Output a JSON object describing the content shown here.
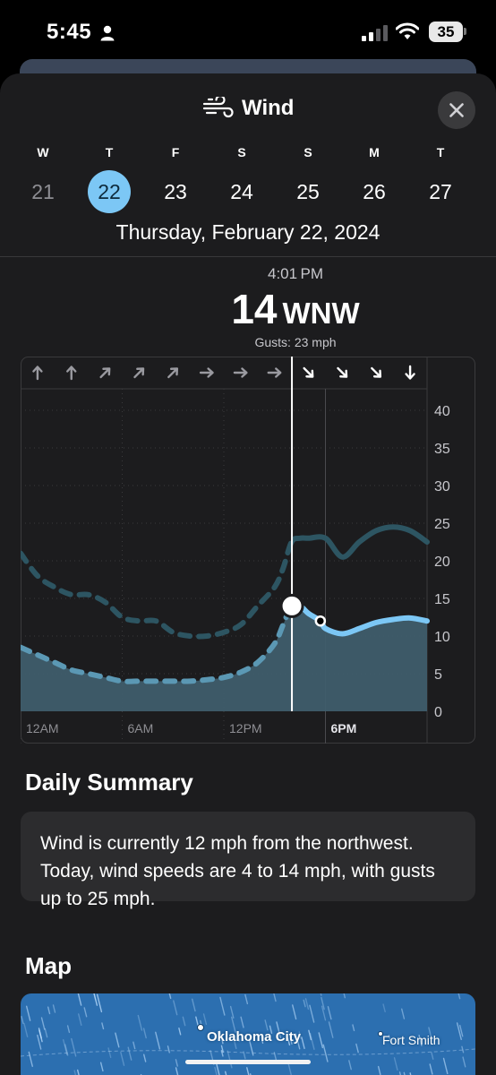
{
  "status_bar": {
    "time": "5:45",
    "battery": "35"
  },
  "sheet": {
    "title": "Wind",
    "icon": "wind-icon",
    "close_icon": "close-icon"
  },
  "week": {
    "days": [
      {
        "letter": "W",
        "number": "21",
        "state": "past"
      },
      {
        "letter": "T",
        "number": "22",
        "state": "selected"
      },
      {
        "letter": "F",
        "number": "23",
        "state": "future"
      },
      {
        "letter": "S",
        "number": "24",
        "state": "future"
      },
      {
        "letter": "S",
        "number": "25",
        "state": "future"
      },
      {
        "letter": "M",
        "number": "26",
        "state": "future"
      },
      {
        "letter": "T",
        "number": "27",
        "state": "future"
      }
    ],
    "selected_date": "Thursday, February 22, 2024"
  },
  "readout": {
    "time": "4:01 PM",
    "speed": "14",
    "direction": "WNW",
    "gusts": "Gusts: 23 mph"
  },
  "chart_data": {
    "type": "line",
    "title": "",
    "xlabel": "",
    "ylabel": "",
    "x_unit": "hour",
    "xlim": [
      0,
      24
    ],
    "ylim": [
      0,
      40
    ],
    "y_ticks": [
      "0",
      "5",
      "10",
      "15",
      "20",
      "25",
      "30",
      "35",
      "40"
    ],
    "x_ticks": [
      {
        "hour": 0,
        "label": "12AM"
      },
      {
        "hour": 6,
        "label": "6AM"
      },
      {
        "hour": 12,
        "label": "12PM"
      },
      {
        "hour": 18,
        "label": "6PM"
      }
    ],
    "current_hour": 16.02,
    "current_value": 14,
    "marker_hour": 17.7,
    "direction_arrows": [
      {
        "hour": 1,
        "deg": 0
      },
      {
        "hour": 3,
        "deg": 0
      },
      {
        "hour": 5,
        "deg": 45
      },
      {
        "hour": 7,
        "deg": 45
      },
      {
        "hour": 9,
        "deg": 45
      },
      {
        "hour": 11,
        "deg": 90
      },
      {
        "hour": 13,
        "deg": 90
      },
      {
        "hour": 15,
        "deg": 90
      },
      {
        "hour": 17,
        "deg": 135
      },
      {
        "hour": 19,
        "deg": 135
      },
      {
        "hour": 21,
        "deg": 135
      },
      {
        "hour": 23,
        "deg": 180
      }
    ],
    "series": [
      {
        "kind": "gusts",
        "x": [
          0,
          1,
          2,
          3,
          4,
          5,
          6,
          7,
          8,
          9,
          10,
          11,
          12,
          13,
          14,
          15,
          15.5,
          16,
          16.5,
          17,
          18,
          19,
          20,
          21,
          22,
          23,
          24
        ],
        "y": [
          21,
          18,
          16.5,
          15.5,
          15.5,
          14.5,
          12.5,
          12,
          12,
          10.5,
          10,
          10,
          10.5,
          11.5,
          14,
          16.5,
          19,
          22.5,
          23,
          23,
          23,
          20.5,
          22.5,
          24,
          24.5,
          24,
          22.5
        ]
      },
      {
        "kind": "speed",
        "x": [
          0,
          1,
          2,
          3,
          4,
          5,
          6,
          7,
          8,
          9,
          10,
          11,
          12,
          13,
          14,
          15,
          15.5,
          16,
          16.5,
          17,
          17.7,
          18,
          19,
          20,
          21,
          22,
          23,
          24
        ],
        "y": [
          8.5,
          7.5,
          6.5,
          5.5,
          5,
          4.5,
          4,
          4,
          4,
          4,
          4,
          4.2,
          4.5,
          5.2,
          6.5,
          9,
          11.5,
          14,
          14,
          13,
          12,
          11,
          10.3,
          11,
          11.8,
          12.2,
          12.4,
          12
        ]
      }
    ]
  },
  "daily_summary": {
    "heading": "Daily Summary",
    "text": "Wind is currently 12 mph from the northwest. Today, wind speeds are 4 to 14 mph, with gusts up to 25 mph."
  },
  "map": {
    "heading": "Map",
    "labels": [
      "Oklahoma City",
      "Fort Smith"
    ]
  },
  "colors": {
    "accent": "#7cc7f5",
    "sheet_bg": "#1c1c1e",
    "card_bg": "#2c2c2e",
    "gust_line": "#2d5562",
    "speed_fill": "#3f5d6c",
    "map_bg": "#2c6fb0"
  }
}
